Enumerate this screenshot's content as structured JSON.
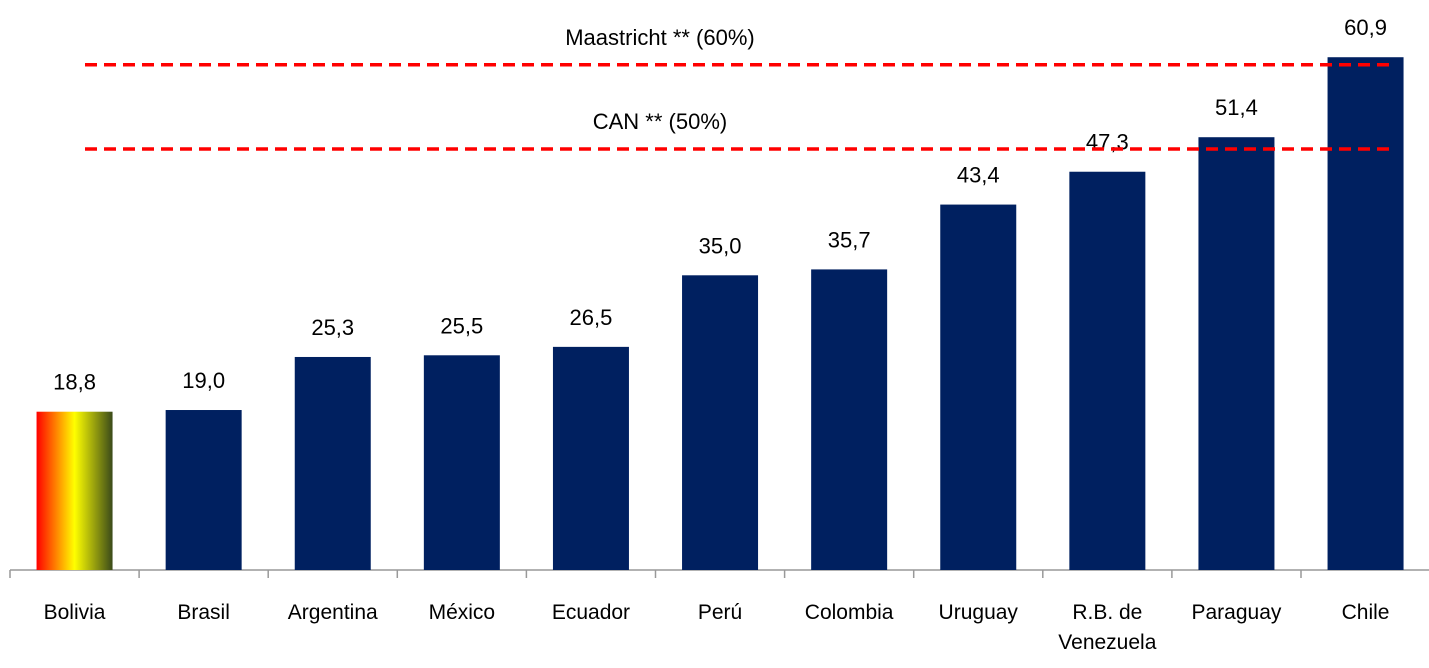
{
  "chart_data": {
    "type": "bar",
    "categories": [
      "Bolivia",
      "Brasil",
      "Argentina",
      "México",
      "Ecuador",
      "Perú",
      "Colombia",
      "Uruguay",
      "R.B. de Venezuela",
      "Paraguay",
      "Chile"
    ],
    "values": [
      18.8,
      19.0,
      25.3,
      25.5,
      26.5,
      35.0,
      35.7,
      43.4,
      47.3,
      51.4,
      60.9
    ],
    "value_labels": [
      "18,8",
      "19,0",
      "25,3",
      "25,5",
      "26,5",
      "35,0",
      "35,7",
      "43,4",
      "47,3",
      "51,4",
      "60,9"
    ],
    "color": "#002060",
    "highlight": {
      "index": 0,
      "gradient": [
        "#ff0000",
        "#ffff00",
        "#3a4a1a"
      ]
    },
    "reference_lines": [
      {
        "label": "Maastricht ** (60%)",
        "value": 60,
        "color": "#ff0000"
      },
      {
        "label": "CAN ** (50%)",
        "value": 50,
        "color": "#ff0000"
      }
    ]
  }
}
